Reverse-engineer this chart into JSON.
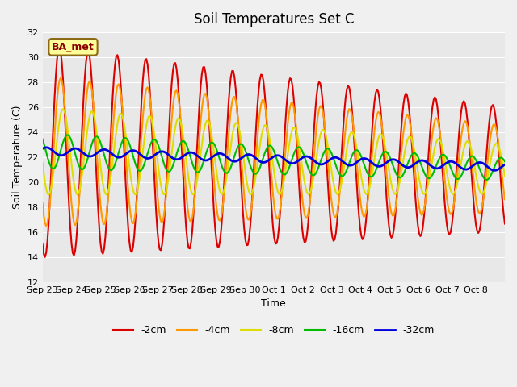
{
  "title": "Soil Temperatures Set C",
  "xlabel": "Time",
  "ylabel": "Soil Temperature (C)",
  "ylim": [
    12,
    32
  ],
  "yticks": [
    12,
    14,
    16,
    18,
    20,
    22,
    24,
    26,
    28,
    30,
    32
  ],
  "tick_labels": [
    "Sep 23",
    "Sep 24",
    "Sep 25",
    "Sep 26",
    "Sep 27",
    "Sep 28",
    "Sep 29",
    "Sep 30",
    "Oct 1",
    "Oct 2",
    "Oct 3",
    "Oct 4",
    "Oct 5",
    "Oct 6",
    "Oct 7",
    "Oct 8"
  ],
  "n_days": 16,
  "series_labels": [
    "-2cm",
    "-4cm",
    "-8cm",
    "-16cm",
    "-32cm"
  ],
  "series_colors": [
    "#dd0000",
    "#ff9900",
    "#dddd00",
    "#00bb00",
    "#0000dd"
  ],
  "series_linewidths": [
    1.5,
    1.5,
    1.5,
    1.5,
    2.0
  ],
  "annotation_text": "BA_met",
  "fig_bg_color": "#f0f0f0",
  "plot_bg_color": "#e8e8e8"
}
